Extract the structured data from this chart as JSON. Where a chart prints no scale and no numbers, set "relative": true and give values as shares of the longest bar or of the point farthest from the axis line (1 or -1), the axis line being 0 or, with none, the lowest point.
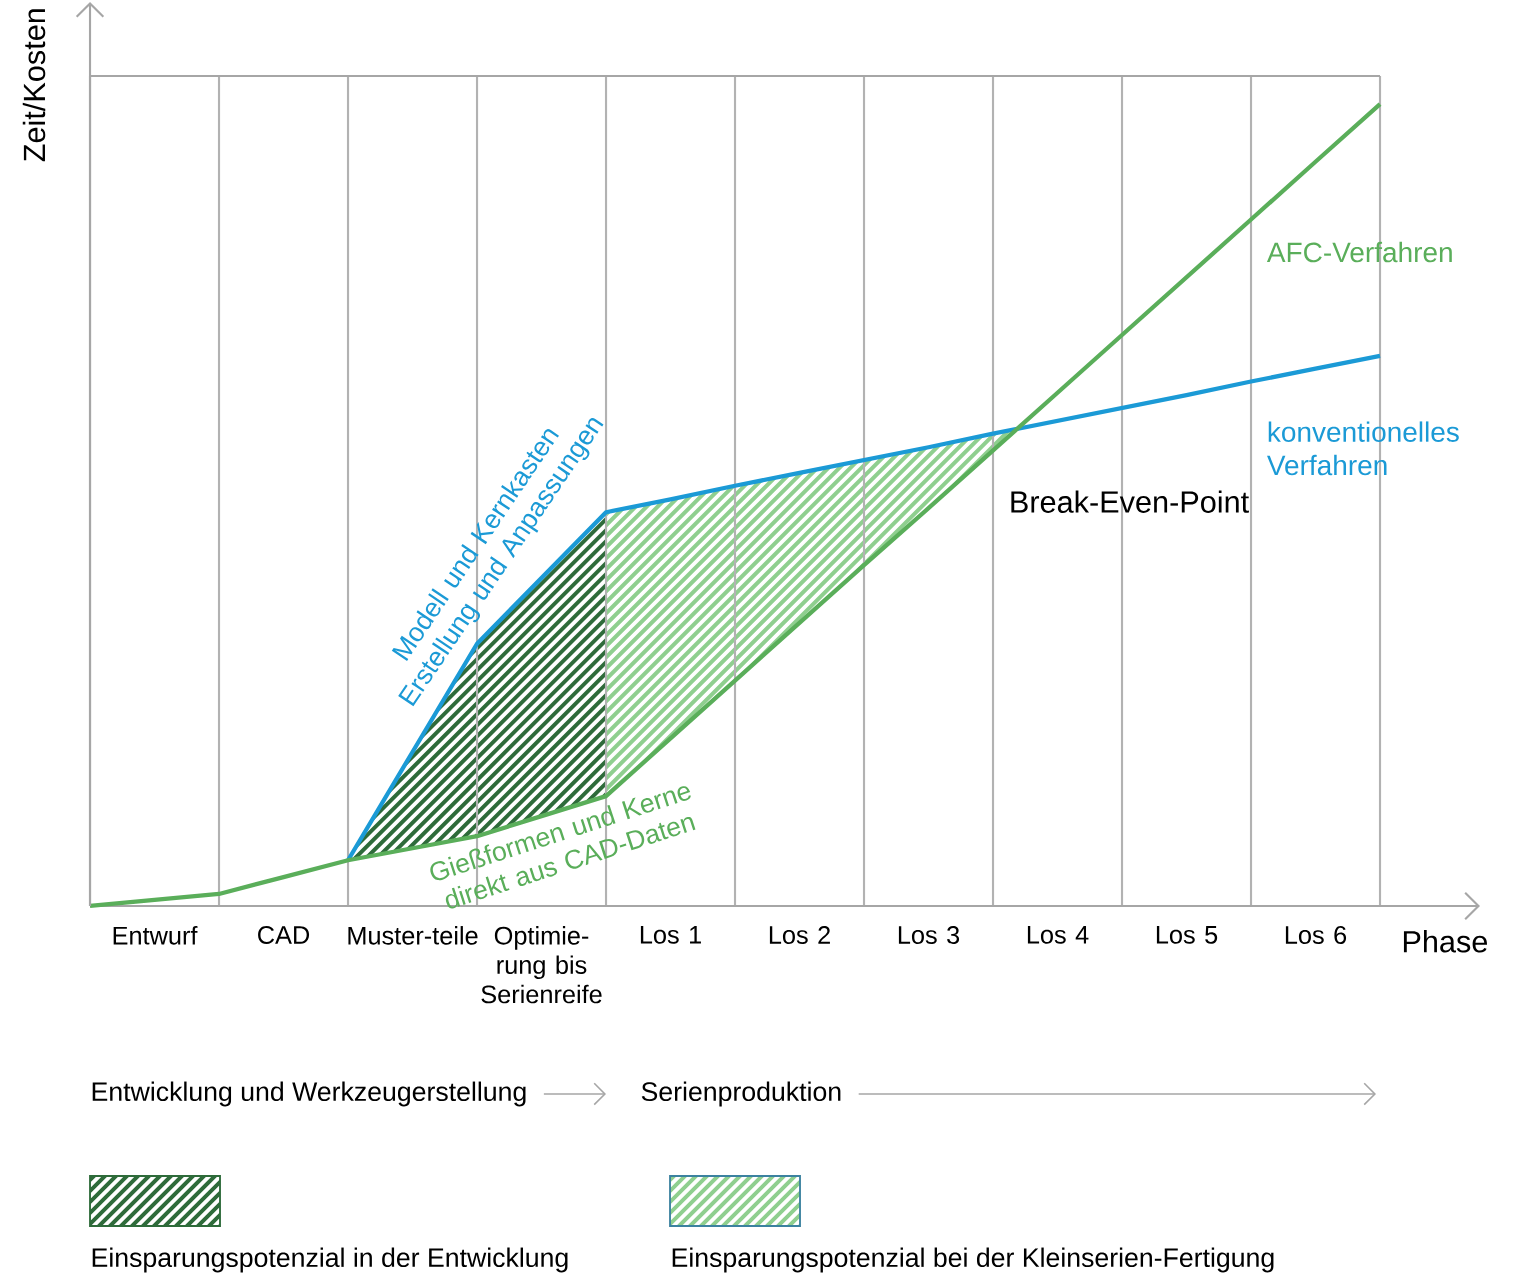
{
  "chart_data": {
    "type": "line",
    "relative": true,
    "xlabel": "Phase",
    "ylabel": "Zeit/Kosten",
    "categories": [
      null,
      "Entwurf",
      null,
      "CAD",
      null,
      "Muster-teile",
      null,
      "Optimie-rung bis Serienreife",
      null,
      "Los 1",
      null,
      "Los 2",
      null,
      "Los 3",
      null,
      "Los 4",
      null,
      "Los 5",
      null,
      "Los 6",
      null
    ],
    "grid": "x",
    "marker": "none",
    "series": [
      {
        "name": "konventionelles Verfahren",
        "color": "#1b9ad6",
        "values": [
          null,
          null,
          null,
          null,
          0.057,
          0.192,
          0.327,
          0.409,
          0.491,
          0.507,
          0.524,
          0.54,
          0.556,
          0.572,
          0.589,
          0.605,
          0.621,
          0.637,
          0.654,
          0.67,
          0.686
        ]
      },
      {
        "name": "AFC-Verfahren",
        "color": "#5aae5a",
        "values": [
          0,
          0.0075,
          0.015,
          0.036,
          0.057,
          0.072,
          0.087,
          0.112,
          0.137,
          0.209,
          0.281,
          0.353,
          0.425,
          0.496,
          0.568,
          0.64,
          0.712,
          0.784,
          0.856,
          0.928,
          1
        ]
      }
    ],
    "annotations": [
      "Modell und Kernkasten Erstellung und Anpassungen",
      "Gießformen und Kerne direkt aus CAD-Daten",
      "Break-Even-Point",
      "Entwicklung und Werkzeugerstellung",
      "Serienproduktion",
      "Einsparungspotenzial in der Entwicklung",
      "Einsparungspotenzial bei der Kleinserien-Fertigung"
    ]
  }
}
